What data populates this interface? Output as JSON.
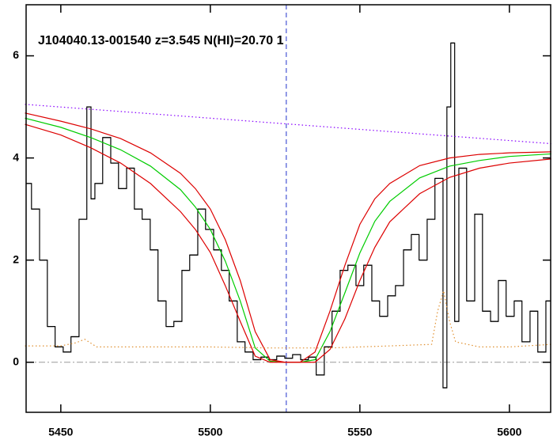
{
  "chart_data": {
    "type": "line",
    "title": "J104040.13-001540 z=3.545 N(HI)=20.70 1",
    "xlim": [
      5438.4,
      5613.8
    ],
    "ylim": [
      -0.98,
      7.0
    ],
    "xticks": [
      5450,
      5500,
      5550,
      5600
    ],
    "yticks": [
      0,
      2,
      4,
      6
    ],
    "reference_line": 0,
    "vline": 5525.4,
    "series": [
      {
        "color": "#000000",
        "style": "step",
        "x": [
          5438.4,
          5440.2,
          5442.9,
          5445.5,
          5448.1,
          5450.8,
          5453.4,
          5456.1,
          5458.7,
          5460.1,
          5461.4,
          5464.0,
          5466.7,
          5469.3,
          5472.0,
          5474.6,
          5477.2,
          5479.9,
          5482.5,
          5485.2,
          5487.8,
          5490.5,
          5493.1,
          5495.8,
          5498.4,
          5501.1,
          5503.7,
          5506.3,
          5509.0,
          5511.6,
          5514.3,
          5516.9,
          5519.6,
          5522.2,
          5524.9,
          5527.5,
          5530.2,
          5532.8,
          5535.4,
          5538.1,
          5540.7,
          5543.4,
          5546.0,
          5548.7,
          5551.3,
          5554.0,
          5556.6,
          5559.3,
          5561.9,
          5564.6,
          5567.2,
          5569.8,
          5572.5,
          5575.1,
          5577.8,
          5579.1,
          5580.4,
          5581.7,
          5583.1,
          5585.7,
          5588.4,
          5591.0,
          5593.7,
          5596.3,
          5598.9,
          5601.6,
          5604.2,
          5606.9,
          5609.5,
          5612.2
        ],
        "values": [
          3.5,
          3.0,
          2.0,
          0.7,
          0.3,
          0.2,
          0.5,
          2.8,
          5.0,
          3.2,
          3.5,
          4.4,
          3.9,
          3.4,
          3.8,
          3.0,
          2.8,
          2.2,
          1.2,
          0.7,
          0.8,
          1.8,
          2.1,
          3.0,
          2.6,
          2.2,
          1.8,
          1.2,
          0.4,
          0.2,
          0.05,
          0.1,
          0.05,
          0.12,
          0.08,
          0.15,
          0.05,
          0.1,
          -0.25,
          0.3,
          1.0,
          1.8,
          1.9,
          1.5,
          1.9,
          1.2,
          0.9,
          1.3,
          1.5,
          2.2,
          2.5,
          2.0,
          2.8,
          3.6,
          -0.5,
          5.0,
          6.25,
          0.8,
          3.8,
          1.2,
          2.9,
          1.0,
          0.8,
          1.6,
          0.9,
          1.2,
          0.4,
          1.0,
          0.2,
          1.2
        ]
      },
      {
        "color": "#00cc00",
        "style": "solid",
        "x": [
          5438,
          5450,
          5460,
          5470,
          5480,
          5490,
          5495,
          5500,
          5505,
          5510,
          5515,
          5520,
          5525,
          5530,
          5535,
          5540,
          5545,
          5550,
          5555,
          5560,
          5570,
          5580,
          5590,
          5600,
          5614
        ],
        "values": [
          4.78,
          4.6,
          4.4,
          4.16,
          3.84,
          3.38,
          3.04,
          2.6,
          1.98,
          1.2,
          0.28,
          0.02,
          0,
          0,
          0.05,
          0.6,
          1.36,
          2.14,
          2.76,
          3.15,
          3.61,
          3.84,
          3.95,
          4.03,
          4.08
        ]
      },
      {
        "color": "#dd0000",
        "style": "solid",
        "x": [
          5438,
          5450,
          5460,
          5470,
          5480,
          5490,
          5495,
          5500,
          5505,
          5510,
          5515,
          5520,
          5525,
          5530,
          5535,
          5540,
          5545,
          5550,
          5555,
          5560,
          5570,
          5580,
          5590,
          5600,
          5614
        ],
        "values": [
          4.88,
          4.72,
          4.57,
          4.38,
          4.1,
          3.7,
          3.4,
          3.0,
          2.4,
          1.6,
          0.6,
          0.05,
          0,
          0,
          0.2,
          1.0,
          1.9,
          2.7,
          3.2,
          3.5,
          3.85,
          4.0,
          4.07,
          4.1,
          4.12
        ]
      },
      {
        "color": "#dd0000",
        "style": "solid",
        "x": [
          5438,
          5450,
          5460,
          5470,
          5480,
          5490,
          5495,
          5500,
          5505,
          5510,
          5515,
          5520,
          5525,
          5530,
          5535,
          5540,
          5545,
          5550,
          5555,
          5560,
          5570,
          5580,
          5590,
          5600,
          5614
        ],
        "values": [
          4.66,
          4.45,
          4.2,
          3.9,
          3.5,
          2.95,
          2.6,
          2.15,
          1.5,
          0.8,
          0.12,
          0,
          0,
          0,
          0,
          0.25,
          0.85,
          1.6,
          2.25,
          2.75,
          3.3,
          3.62,
          3.8,
          3.9,
          3.98
        ]
      },
      {
        "color": "#8800ff",
        "style": "dotted",
        "x": [
          5438,
          5614
        ],
        "values": [
          5.05,
          4.28
        ]
      },
      {
        "color": "#e09030",
        "style": "dotted",
        "x": [
          5438,
          5450,
          5455,
          5458,
          5462,
          5480,
          5500,
          5520,
          5540,
          5560,
          5574,
          5576,
          5578,
          5580,
          5582,
          5590,
          5600,
          5614
        ],
        "values": [
          0.32,
          0.32,
          0.38,
          0.45,
          0.3,
          0.3,
          0.3,
          0.28,
          0.28,
          0.32,
          0.35,
          1.0,
          1.4,
          0.8,
          0.4,
          0.3,
          0.3,
          0.35
        ]
      }
    ]
  }
}
